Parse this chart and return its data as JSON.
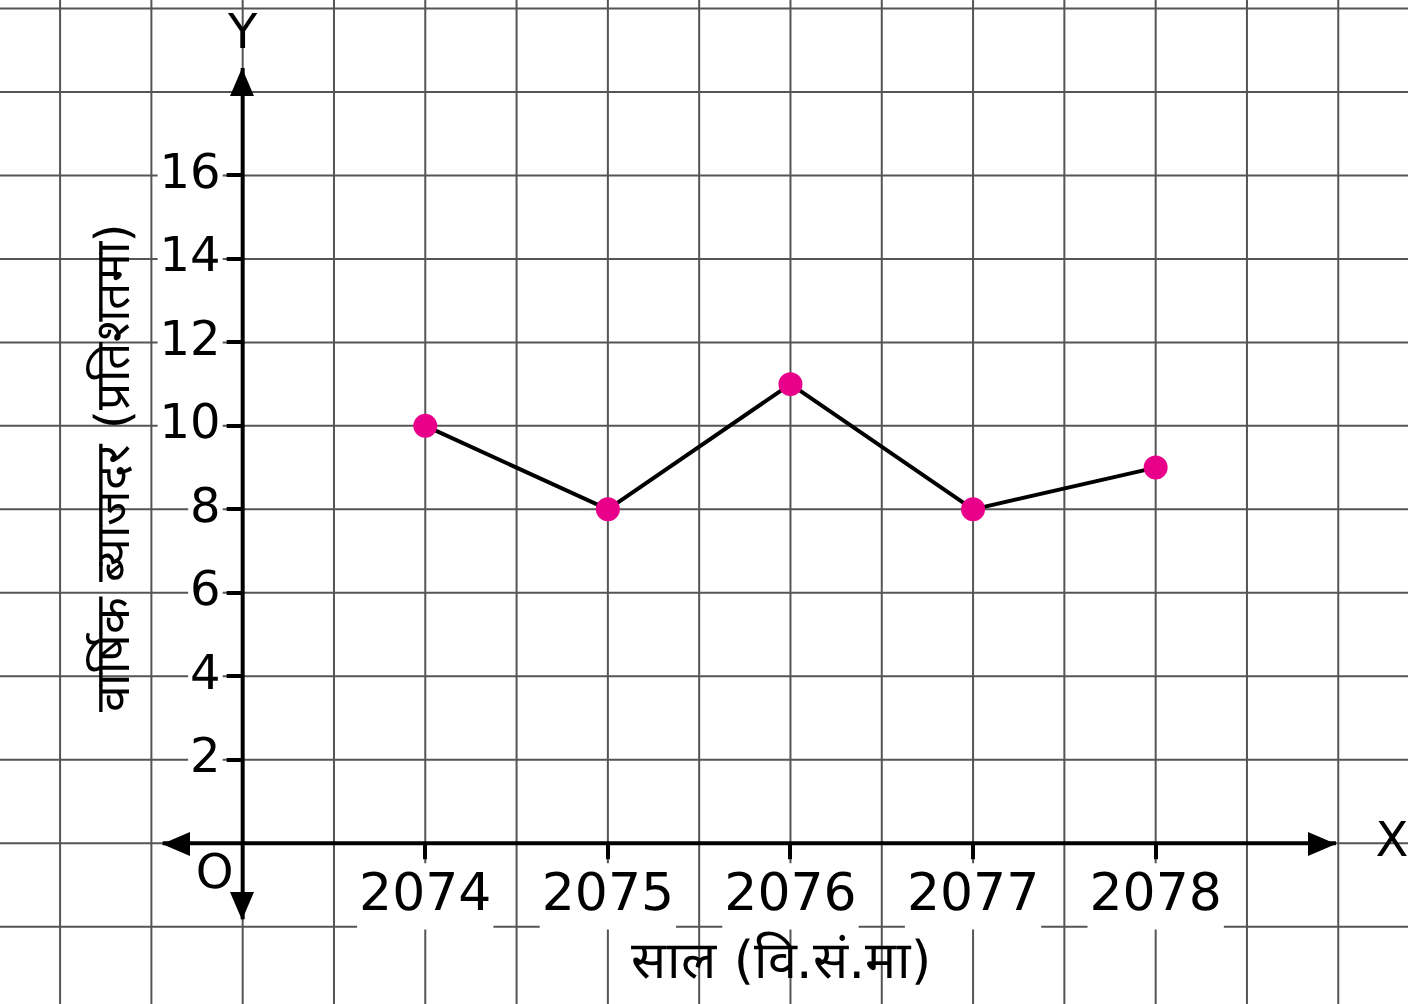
{
  "chart_data": {
    "type": "line",
    "xlabel": "साल (वि.सं.मा)",
    "ylabel": "वार्षिक ब्याजदर (प्रतिशतमा)",
    "categories": [
      "2074",
      "2075",
      "2076",
      "2077",
      "2078"
    ],
    "series": [
      {
        "color": "#000000",
        "colors": [
          "#e8008a",
          "#e8008a",
          "#e8008a",
          "#e8008a",
          "#e8008a"
        ],
        "values": [
          10,
          8,
          11,
          8,
          9
        ]
      }
    ],
    "ylim": [
      0,
      18
    ],
    "yticks": [
      2,
      4,
      6,
      8,
      10,
      12,
      14,
      16
    ],
    "grid": true,
    "marker": "circle",
    "line_style": "solid",
    "annotations": [
      "O",
      "X",
      "Y"
    ]
  }
}
